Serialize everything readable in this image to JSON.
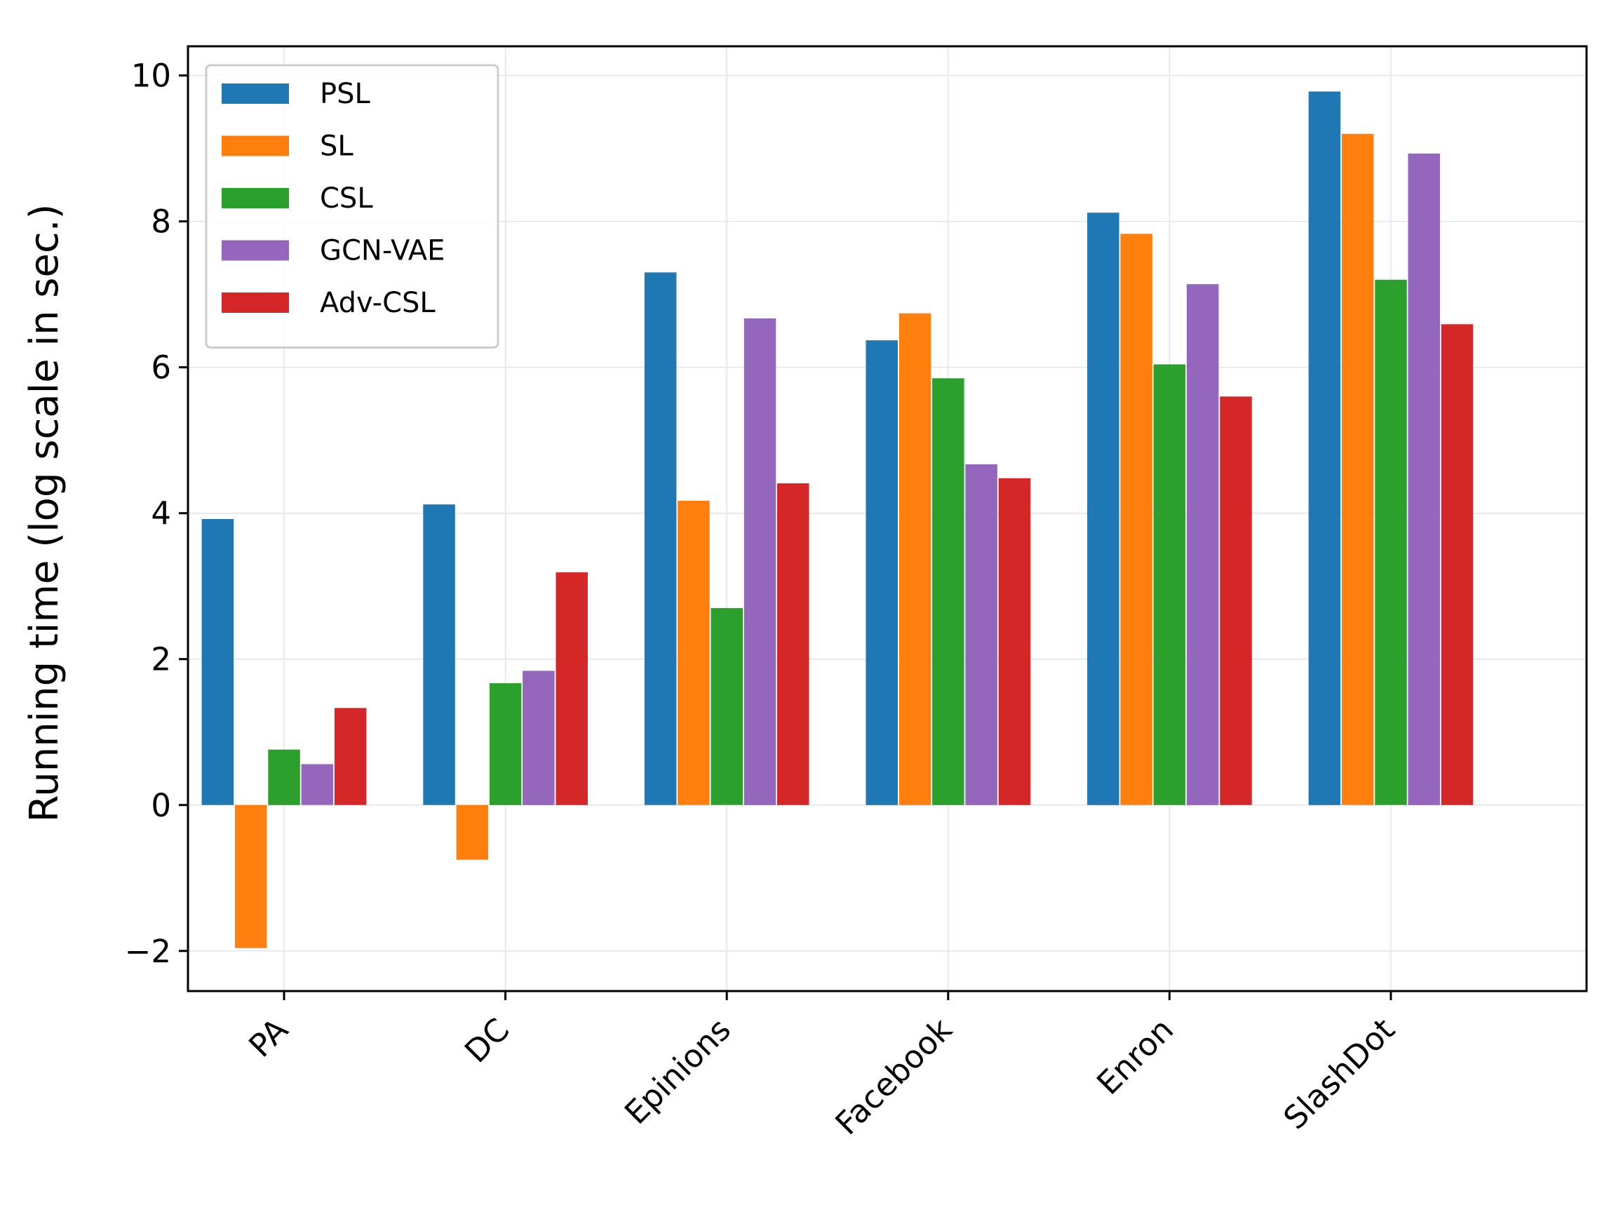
{
  "chart_data": {
    "type": "bar",
    "title": "",
    "xlabel": "",
    "ylabel": "Running time (log scale in sec.)",
    "ylim": [
      -2.55,
      10.4
    ],
    "yticks": [
      -2,
      0,
      2,
      4,
      6,
      8,
      10
    ],
    "ytick_labels": [
      "−2",
      "0",
      "2",
      "4",
      "6",
      "8",
      "10"
    ],
    "grid": true,
    "legend_position": "top-left",
    "categories": [
      "PA",
      "DC",
      "Epinions",
      "Facebook",
      "Enron",
      "SlashDot"
    ],
    "series": [
      {
        "name": "PSL",
        "color": "#1f77b4",
        "values": [
          3.92,
          4.12,
          7.3,
          6.37,
          8.12,
          9.78
        ]
      },
      {
        "name": "SL",
        "color": "#ff7f0e",
        "values": [
          -1.96,
          -0.75,
          4.17,
          6.74,
          7.83,
          9.2
        ]
      },
      {
        "name": "CSL",
        "color": "#2ca02c",
        "values": [
          0.76,
          1.67,
          2.7,
          5.85,
          6.04,
          7.2
        ]
      },
      {
        "name": "GCN-VAE",
        "color": "#9467bd",
        "values": [
          0.56,
          1.84,
          6.67,
          4.67,
          7.14,
          8.93
        ]
      },
      {
        "name": "Adv-CSL",
        "color": "#d62728",
        "values": [
          1.33,
          3.19,
          4.41,
          4.48,
          5.6,
          6.59
        ]
      }
    ]
  }
}
